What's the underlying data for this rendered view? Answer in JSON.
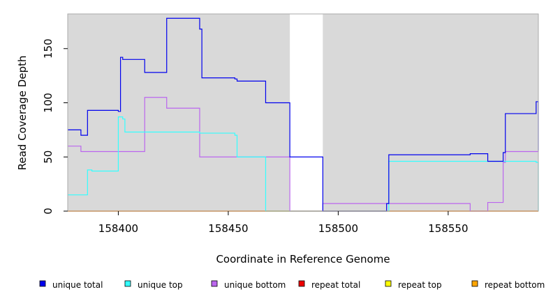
{
  "chart_data": {
    "type": "line",
    "xlabel": "Coordinate in Reference Genome",
    "ylabel": "Read Coverage Depth",
    "xlim": [
      158377,
      158591
    ],
    "ylim": [
      0,
      182
    ],
    "xticks": [
      158400,
      158450,
      158500,
      158550
    ],
    "yticks": [
      0,
      50,
      100,
      150
    ],
    "grid": false,
    "background": "#d9d9d9",
    "gap_region": [
      158478,
      158493
    ],
    "legend_position": "bottom",
    "series": [
      {
        "name": "unique total",
        "color": "#0000ee",
        "step": true,
        "x": [
          158377,
          158383,
          158386,
          158400,
          158401,
          158402,
          158412,
          158422,
          158437,
          158438,
          158453,
          158454,
          158467,
          158478,
          158493,
          158522,
          158523,
          158560,
          158568,
          158575,
          158576,
          158590,
          158591
        ],
        "y": [
          75,
          70,
          93,
          92,
          142,
          140,
          128,
          178,
          168,
          123,
          122,
          120,
          100,
          50,
          0,
          7,
          52,
          53,
          46,
          54,
          90,
          101,
          56
        ]
      },
      {
        "name": "unique top",
        "color": "#33ffff",
        "step": true,
        "x": [
          158377,
          158386,
          158388,
          158400,
          158402,
          158403,
          158437,
          158453,
          158454,
          158467,
          158493,
          158523,
          158590,
          158591
        ],
        "y": [
          15,
          38,
          37,
          87,
          85,
          73,
          72,
          70,
          50,
          0,
          0,
          46,
          45,
          0
        ]
      },
      {
        "name": "unique bottom",
        "color": "#bb66ee",
        "step": true,
        "x": [
          158377,
          158383,
          158412,
          158422,
          158437,
          158478,
          158493,
          158560,
          158568,
          158575,
          158576,
          158591
        ],
        "y": [
          60,
          55,
          105,
          95,
          50,
          0,
          7,
          0,
          8,
          45,
          55,
          56
        ]
      },
      {
        "name": "repeat total",
        "color": "#ee0000",
        "step": true,
        "x": [
          158377,
          158591
        ],
        "y": [
          0,
          0
        ]
      },
      {
        "name": "repeat top",
        "color": "#ffff00",
        "step": true,
        "x": [
          158377,
          158591
        ],
        "y": [
          0,
          0
        ]
      },
      {
        "name": "repeat bottom",
        "color": "#ffa500",
        "step": true,
        "x": [
          158377,
          158591
        ],
        "y": [
          0,
          0
        ]
      }
    ]
  }
}
